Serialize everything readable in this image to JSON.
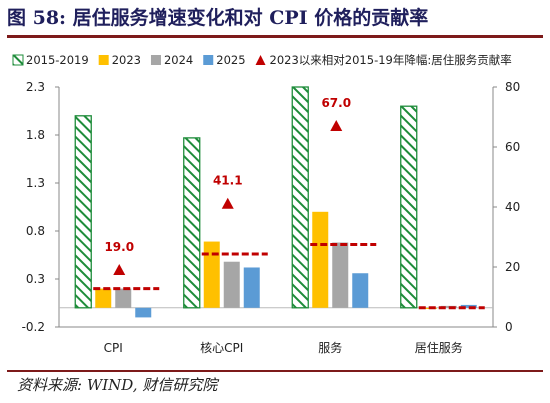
{
  "figure": {
    "title": "图 58: 居住服务增速变化和对 CPI 价格的贡献率",
    "source": "资料来源: WIND, 财信研究院"
  },
  "chart_data": {
    "type": "bar",
    "categories": [
      "CPI",
      "核心CPI",
      "服务",
      "居住服务"
    ],
    "series": [
      {
        "name": "2015-2019",
        "axis": "left",
        "pattern": "hatch",
        "color": "#1e8c3a",
        "values": [
          2.0,
          1.77,
          2.3,
          2.1
        ]
      },
      {
        "name": "2023",
        "axis": "left",
        "color": "#ffc000",
        "values": [
          0.2,
          0.69,
          1.0,
          0.0
        ]
      },
      {
        "name": "2024",
        "axis": "left",
        "color": "#a6a6a6",
        "values": [
          0.2,
          0.48,
          0.68,
          0.02
        ]
      },
      {
        "name": "2025",
        "axis": "left",
        "color": "#5b9bd5",
        "values": [
          -0.1,
          0.42,
          0.36,
          0.03
        ]
      },
      {
        "name": "2023以来相对2015-19年降幅:居住服务贡献率",
        "axis": "right",
        "marker": "triangle",
        "color": "#c00000",
        "values": [
          19.0,
          41.1,
          67.0,
          null
        ],
        "labels": [
          "19.0",
          "41.1",
          "67.0",
          ""
        ]
      }
    ],
    "reference_lines": {
      "description_hidden": false,
      "color": "#c00000",
      "style": "dashed",
      "values": [
        0.2,
        0.56,
        0.66,
        0.0
      ]
    },
    "y_left": {
      "min": -0.2,
      "max": 2.3,
      "ticks": [
        "-0.2",
        "0.3",
        "0.8",
        "1.3",
        "1.8",
        "2.3"
      ],
      "tick_values": [
        -0.2,
        0.3,
        0.8,
        1.3,
        1.8,
        2.3
      ]
    },
    "y_right": {
      "min": 0,
      "max": 80,
      "ticks": [
        "0",
        "20",
        "40",
        "60",
        "80"
      ],
      "tick_values": [
        0,
        20,
        40,
        60,
        80
      ]
    },
    "legend_placement": "top",
    "grid": false
  }
}
